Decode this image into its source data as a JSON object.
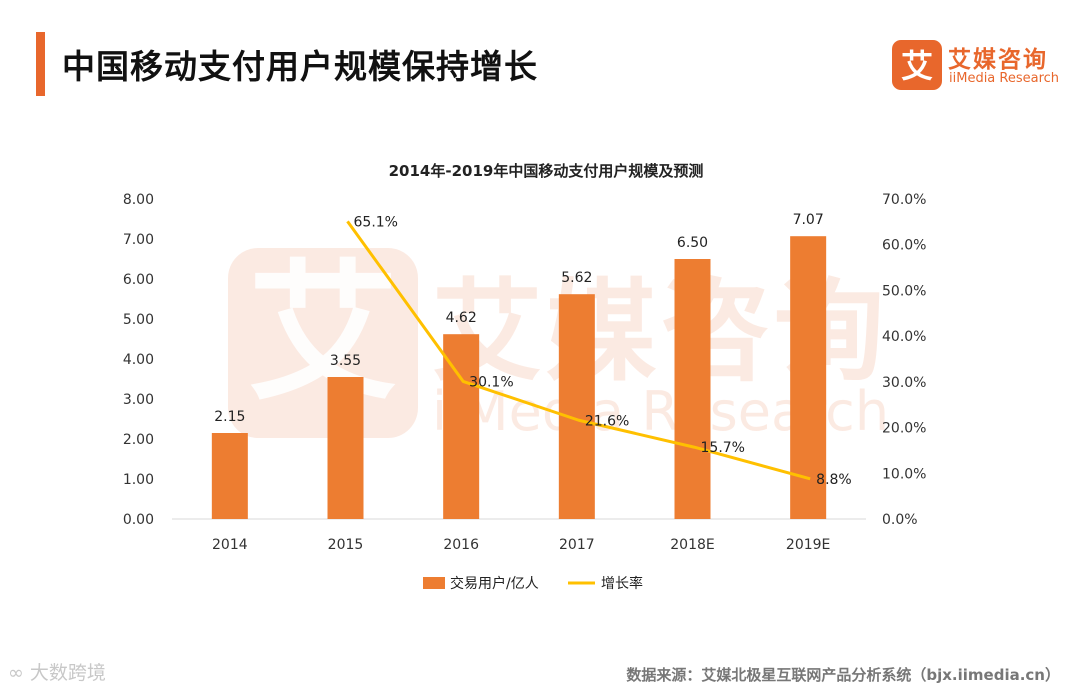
{
  "header": {
    "title": "中国移动支付用户规模保持增长"
  },
  "brand": {
    "name_cn": "艾媒咨询",
    "name_en": "iiMedia Research",
    "icon_glyph": "艾",
    "color": "#e8672c"
  },
  "watermark": {
    "cn": "艾媒咨询",
    "en": "iiMedia Research"
  },
  "corner_logo": {
    "text": "大数跨境"
  },
  "footer": {
    "source": "数据来源：艾媒北极星互联网产品分析系统（bjx.iimedia.cn）"
  },
  "chart_data": {
    "type": "bar",
    "title": "2014年-2019年中国移动支付用户规模及预测",
    "categories": [
      "2014",
      "2015",
      "2016",
      "2017",
      "2018E",
      "2019E"
    ],
    "series": [
      {
        "name": "交易用户/亿人",
        "type": "bar",
        "axis": "left",
        "color": "#ed7d31",
        "values": [
          2.15,
          3.55,
          4.62,
          5.62,
          6.5,
          7.07
        ],
        "labels": [
          "2.15",
          "3.55",
          "4.62",
          "5.62",
          "6.50",
          "7.07"
        ]
      },
      {
        "name": "增长率",
        "type": "line",
        "axis": "right",
        "color": "#ffc000",
        "values": [
          null,
          65.1,
          30.1,
          21.6,
          15.7,
          8.8
        ],
        "labels": [
          "",
          "65.1%",
          "30.1%",
          "21.6%",
          "15.7%",
          "8.8%"
        ]
      }
    ],
    "left_axis": {
      "ylim": [
        0,
        8
      ],
      "ticks": [
        "0.00",
        "1.00",
        "2.00",
        "3.00",
        "4.00",
        "5.00",
        "6.00",
        "7.00",
        "8.00"
      ]
    },
    "right_axis": {
      "ylim": [
        0,
        70
      ],
      "ticks": [
        "0.0%",
        "10.0%",
        "20.0%",
        "30.0%",
        "40.0%",
        "50.0%",
        "60.0%",
        "70.0%"
      ]
    },
    "grid": false,
    "legend": "bottom"
  }
}
